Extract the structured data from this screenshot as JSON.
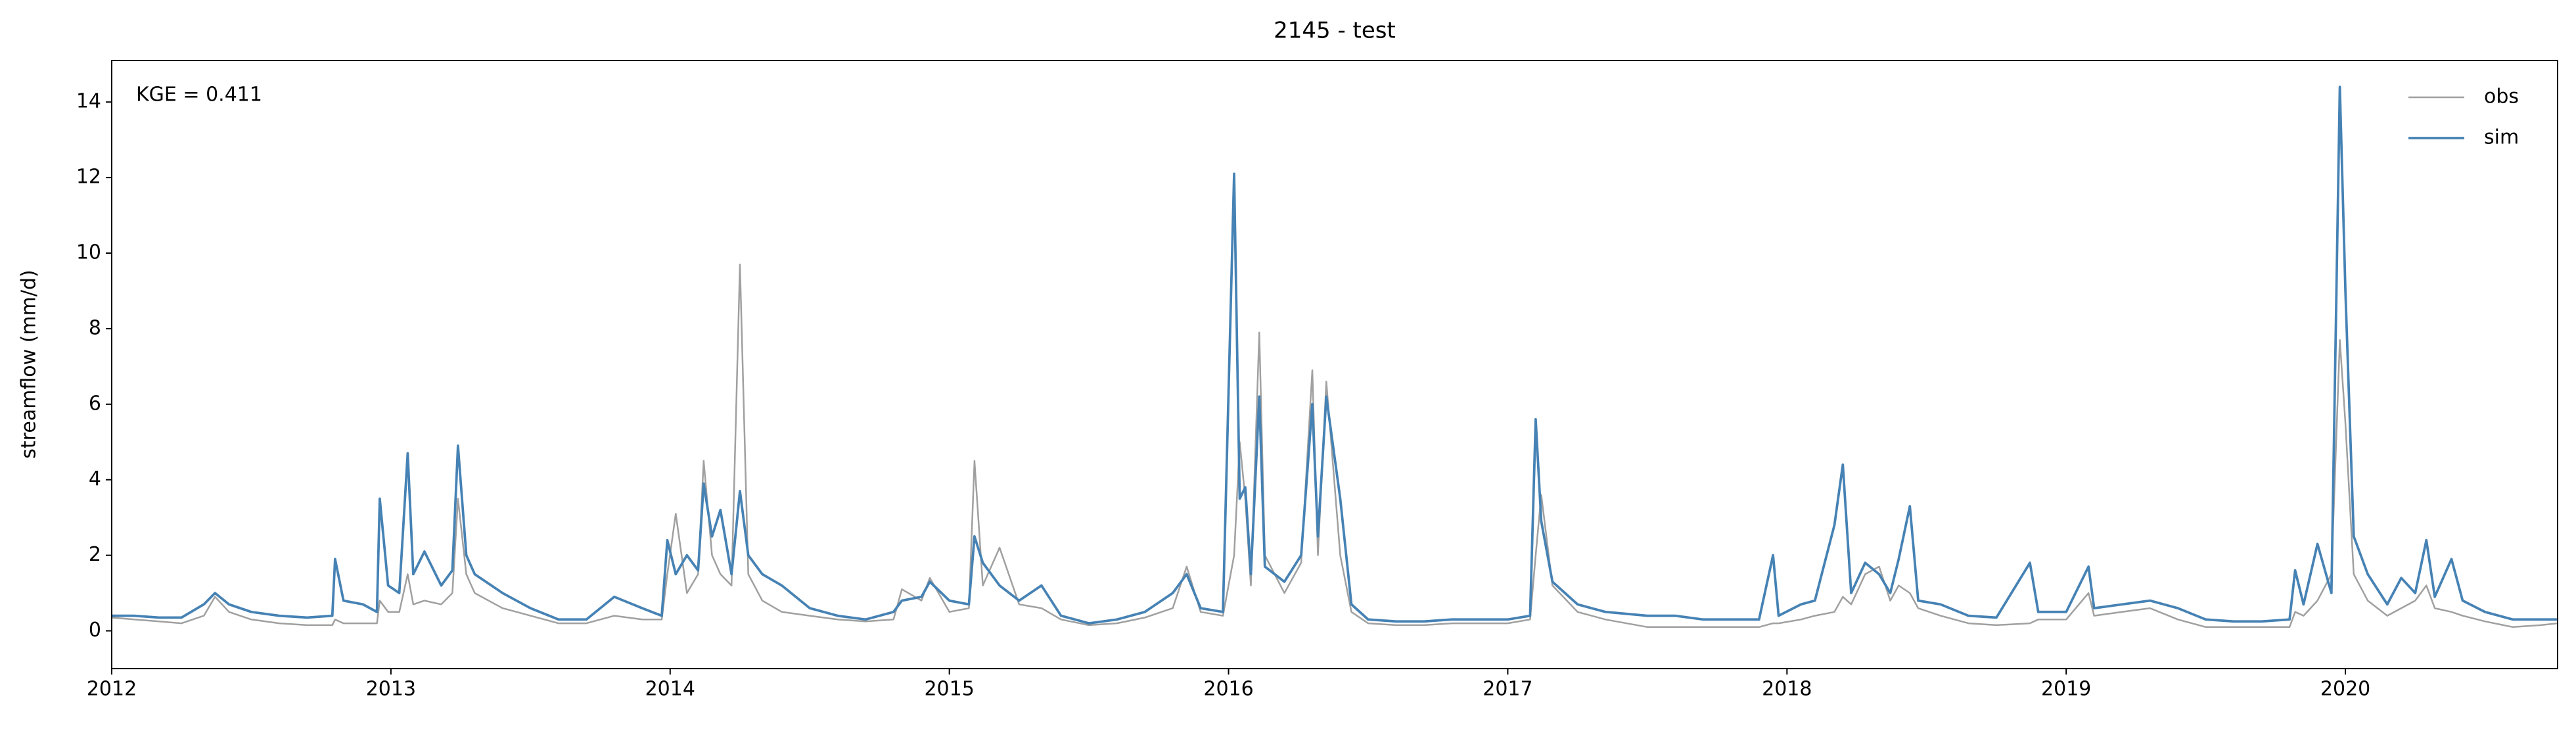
{
  "chart_data": {
    "type": "line",
    "title": "2145 - test",
    "ylabel": "streamflow (mm/d)",
    "annotation": "KGE = 0.411",
    "legend": "upper right",
    "xlim": [
      2012,
      2020.76
    ],
    "xticks": [
      2012,
      2013,
      2014,
      2015,
      2016,
      2017,
      2018,
      2019,
      2020
    ],
    "ylim": [
      -1,
      15.1
    ],
    "yticks": [
      0,
      2,
      4,
      6,
      8,
      10,
      12,
      14
    ],
    "x": [
      2012.0,
      2012.08,
      2012.17,
      2012.25,
      2012.33,
      2012.37,
      2012.42,
      2012.5,
      2012.6,
      2012.7,
      2012.79,
      2012.8,
      2012.83,
      2012.9,
      2012.95,
      2012.96,
      2012.99,
      2013.03,
      2013.06,
      2013.08,
      2013.12,
      2013.18,
      2013.22,
      2013.24,
      2013.27,
      2013.3,
      2013.4,
      2013.5,
      2013.6,
      2013.7,
      2013.8,
      2013.9,
      2013.97,
      2013.99,
      2014.02,
      2014.06,
      2014.1,
      2014.12,
      2014.15,
      2014.18,
      2014.22,
      2014.25,
      2014.28,
      2014.33,
      2014.4,
      2014.5,
      2014.6,
      2014.7,
      2014.8,
      2014.83,
      2014.9,
      2014.93,
      2015.0,
      2015.07,
      2015.09,
      2015.12,
      2015.18,
      2015.25,
      2015.33,
      2015.4,
      2015.5,
      2015.6,
      2015.7,
      2015.8,
      2015.85,
      2015.9,
      2015.98,
      2016.02,
      2016.04,
      2016.06,
      2016.08,
      2016.11,
      2016.13,
      2016.2,
      2016.26,
      2016.3,
      2016.32,
      2016.35,
      2016.4,
      2016.44,
      2016.5,
      2016.6,
      2016.7,
      2016.8,
      2016.9,
      2017.0,
      2017.08,
      2017.1,
      2017.12,
      2017.16,
      2017.25,
      2017.35,
      2017.5,
      2017.6,
      2017.7,
      2017.8,
      2017.9,
      2017.95,
      2017.97,
      2018.05,
      2018.1,
      2018.17,
      2018.2,
      2018.23,
      2018.28,
      2018.33,
      2018.37,
      2018.4,
      2018.44,
      2018.47,
      2018.55,
      2018.65,
      2018.75,
      2018.87,
      2018.9,
      2019.0,
      2019.08,
      2019.1,
      2019.2,
      2019.3,
      2019.4,
      2019.5,
      2019.6,
      2019.7,
      2019.8,
      2019.82,
      2019.85,
      2019.9,
      2019.95,
      2019.98,
      2020.0,
      2020.03,
      2020.08,
      2020.15,
      2020.2,
      2020.25,
      2020.29,
      2020.32,
      2020.38,
      2020.42,
      2020.5,
      2020.6,
      2020.7,
      2020.76
    ],
    "series": [
      {
        "name": "obs",
        "color": "#a0a0a0",
        "width": 1,
        "values": [
          0.35,
          0.3,
          0.25,
          0.2,
          0.4,
          0.9,
          0.5,
          0.3,
          0.2,
          0.15,
          0.15,
          0.3,
          0.2,
          0.2,
          0.2,
          0.8,
          0.5,
          0.5,
          1.5,
          0.7,
          0.8,
          0.7,
          1.0,
          3.5,
          1.5,
          1.0,
          0.6,
          0.4,
          0.2,
          0.2,
          0.4,
          0.3,
          0.3,
          1.5,
          3.1,
          1.0,
          1.5,
          4.5,
          2.0,
          1.5,
          1.2,
          9.7,
          1.5,
          0.8,
          0.5,
          0.4,
          0.3,
          0.25,
          0.3,
          1.1,
          0.8,
          1.4,
          0.5,
          0.6,
          4.5,
          1.2,
          2.2,
          0.7,
          0.6,
          0.3,
          0.15,
          0.2,
          0.35,
          0.6,
          1.7,
          0.5,
          0.4,
          2.0,
          5.0,
          3.5,
          1.2,
          7.9,
          2.0,
          1.0,
          1.8,
          6.9,
          2.0,
          6.6,
          2.0,
          0.5,
          0.2,
          0.15,
          0.15,
          0.2,
          0.2,
          0.2,
          0.3,
          2.0,
          3.6,
          1.2,
          0.5,
          0.3,
          0.1,
          0.1,
          0.1,
          0.1,
          0.1,
          0.2,
          0.2,
          0.3,
          0.4,
          0.5,
          0.9,
          0.7,
          1.5,
          1.7,
          0.8,
          1.2,
          1.0,
          0.6,
          0.4,
          0.2,
          0.15,
          0.2,
          0.3,
          0.3,
          1.0,
          0.4,
          0.5,
          0.6,
          0.3,
          0.1,
          0.1,
          0.1,
          0.1,
          0.5,
          0.4,
          0.8,
          1.5,
          7.7,
          5.5,
          1.5,
          0.8,
          0.4,
          0.6,
          0.8,
          1.2,
          0.6,
          0.5,
          0.4,
          0.25,
          0.1,
          0.15,
          0.2
        ]
      },
      {
        "name": "sim",
        "color": "#4682b4",
        "width": 1.5,
        "values": [
          0.4,
          0.4,
          0.35,
          0.35,
          0.7,
          1.0,
          0.7,
          0.5,
          0.4,
          0.35,
          0.4,
          1.9,
          0.8,
          0.7,
          0.5,
          3.5,
          1.2,
          1.0,
          4.7,
          1.5,
          2.1,
          1.2,
          1.6,
          4.9,
          2.0,
          1.5,
          1.0,
          0.6,
          0.3,
          0.3,
          0.9,
          0.6,
          0.4,
          2.4,
          1.5,
          2.0,
          1.6,
          3.9,
          2.5,
          3.2,
          1.5,
          3.7,
          2.0,
          1.5,
          1.2,
          0.6,
          0.4,
          0.3,
          0.5,
          0.8,
          0.9,
          1.3,
          0.8,
          0.7,
          2.5,
          1.8,
          1.2,
          0.8,
          1.2,
          0.4,
          0.2,
          0.3,
          0.5,
          1.0,
          1.5,
          0.6,
          0.5,
          12.1,
          3.5,
          3.8,
          1.5,
          6.2,
          1.7,
          1.3,
          2.0,
          6.0,
          2.5,
          6.2,
          3.5,
          0.7,
          0.3,
          0.25,
          0.25,
          0.3,
          0.3,
          0.3,
          0.4,
          5.6,
          2.9,
          1.3,
          0.7,
          0.5,
          0.4,
          0.4,
          0.3,
          0.3,
          0.3,
          2.0,
          0.4,
          0.7,
          0.8,
          2.8,
          4.4,
          1.0,
          1.8,
          1.5,
          1.0,
          1.9,
          3.3,
          0.8,
          0.7,
          0.4,
          0.35,
          1.8,
          0.5,
          0.5,
          1.7,
          0.6,
          0.7,
          0.8,
          0.6,
          0.3,
          0.25,
          0.25,
          0.3,
          1.6,
          0.7,
          2.3,
          1.0,
          14.4,
          9.0,
          2.5,
          1.5,
          0.7,
          1.4,
          1.0,
          2.4,
          0.9,
          1.9,
          0.8,
          0.5,
          0.3,
          0.3,
          0.3
        ]
      }
    ]
  }
}
